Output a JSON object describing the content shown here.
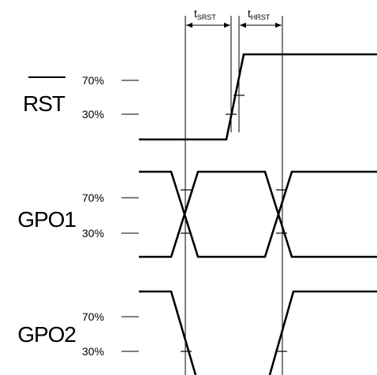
{
  "signals": [
    {
      "name": "RST",
      "overline": true
    },
    {
      "name": "GPO1",
      "overline": false
    },
    {
      "name": "GPO2",
      "overline": false
    }
  ],
  "levels": {
    "high": "70%",
    "low": "30%"
  },
  "timing": [
    {
      "main": "t",
      "sub": "SRST"
    },
    {
      "main": "t",
      "sub": "HRST"
    }
  ]
}
